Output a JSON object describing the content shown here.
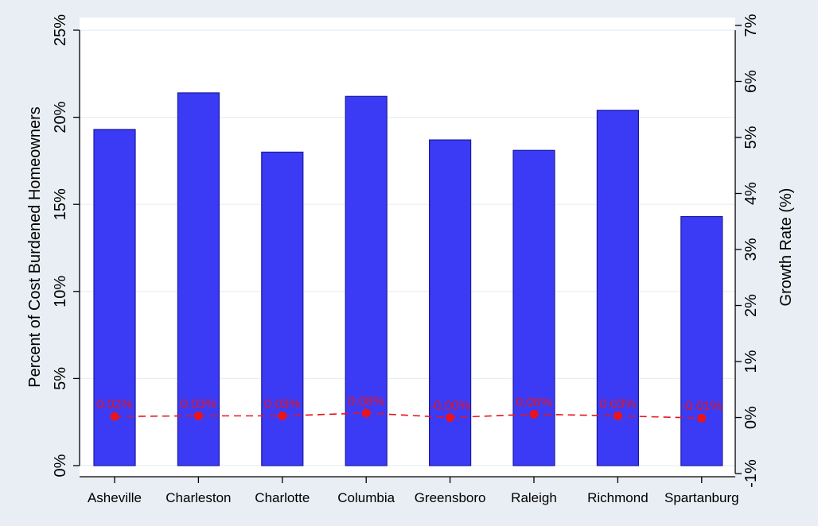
{
  "chart_data": {
    "type": "bar",
    "categories": [
      "Asheville",
      "Charleston",
      "Charlotte",
      "Columbia",
      "Greensboro",
      "Raleigh",
      "Richmond",
      "Spartanburg"
    ],
    "series": [
      {
        "values": [
          19.3,
          21.4,
          18.0,
          21.2,
          18.7,
          18.1,
          20.4,
          14.3
        ]
      },
      {
        "values": [
          0.02,
          0.03,
          0.03,
          0.08,
          -0.0,
          0.06,
          0.03,
          -0.01
        ],
        "labels": [
          "0.02%",
          "0.03%",
          "0.03%",
          "0.08%",
          "-0.00%",
          "0.06%",
          "0.03%",
          "-0.01%"
        ]
      }
    ],
    "ylabel": "Percent of Cost Burdened Homeowners",
    "y2label": "Growth Rate (%)",
    "ylim": [
      0,
      25
    ],
    "y2lim": [
      -1,
      7
    ],
    "yticks": [
      "0%",
      "5%",
      "10%",
      "15%",
      "20%",
      "25%"
    ],
    "y2ticks": [
      "-1%",
      "0%",
      "1%",
      "2%",
      "3%",
      "4%",
      "5%",
      "6%",
      "7%"
    ],
    "colors": {
      "bar": "#3b3bf5",
      "bar_edge": "#1a1aa0",
      "line": "#e8141e",
      "label": "#e8141e",
      "plot_bg": "#ffffff",
      "page_bg": "#e8eef3",
      "grid": "#e8eef3"
    },
    "grid": true,
    "legend": "none"
  }
}
